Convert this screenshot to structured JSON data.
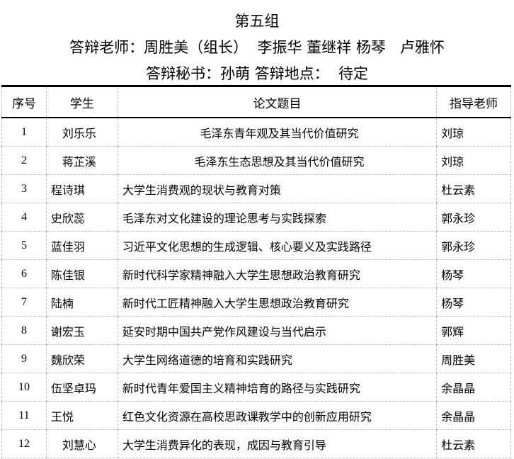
{
  "title": "第五组",
  "teachers_line": "答辩老师：周胜美（组长）  李振华 董继祥 杨琴   卢雅怀",
  "secretary_line": "答辩秘书：孙萌 答辩地点：  待定",
  "table": {
    "headers": [
      "序号",
      "学生",
      "论文题目",
      "指导老师"
    ],
    "rows": [
      {
        "no": "1",
        "student": "刘乐乐",
        "title": "毛泽东青年观及其当代价值研究",
        "advisor": "刘琼"
      },
      {
        "no": "2",
        "student": "蒋芷溪",
        "title": "毛泽东生态思想及其当代价值研究",
        "advisor": "刘琼"
      },
      {
        "no": "3",
        "student": "程诗琪",
        "title": "大学生消费观的现状与教育对策",
        "advisor": "杜云素"
      },
      {
        "no": "4",
        "student": "史欣蕊",
        "title": "毛泽东对文化建设的理论思考与实践探索",
        "advisor": "郭永珍"
      },
      {
        "no": "5",
        "student": "蓝佳羽",
        "title": "习近平文化思想的生成逻辑、核心要义及实践路径",
        "advisor": "郭永珍"
      },
      {
        "no": "6",
        "student": "陈佳银",
        "title": "新时代科学家精神融入大学生思想政治教育研究",
        "advisor": "杨琴"
      },
      {
        "no": "7",
        "student": "陆楠",
        "title": "新时代工匠精神融入大学生思想政治教育研究",
        "advisor": "杨琴"
      },
      {
        "no": "8",
        "student": "谢宏玉",
        "title": "延安时期中国共产党作风建设与当代启示",
        "advisor": "郭辉"
      },
      {
        "no": "9",
        "student": "魏欣荣",
        "title": "大学生网络道德的培育和实践研究",
        "advisor": "周胜美"
      },
      {
        "no": "10",
        "student": "伍坚卓玛",
        "title": "新时代青年爱国主义精神培育的路径与实践研究",
        "advisor": "余晶晶"
      },
      {
        "no": "11",
        "student": "王悦",
        "title": "红色文化资源在高校思政课教学中的创新应用研究",
        "advisor": "余晶晶"
      },
      {
        "no": "12",
        "student": "刘慧心",
        "title": "大学生消费异化的表现，成因与教育引导",
        "advisor": "杜云素"
      }
    ]
  }
}
